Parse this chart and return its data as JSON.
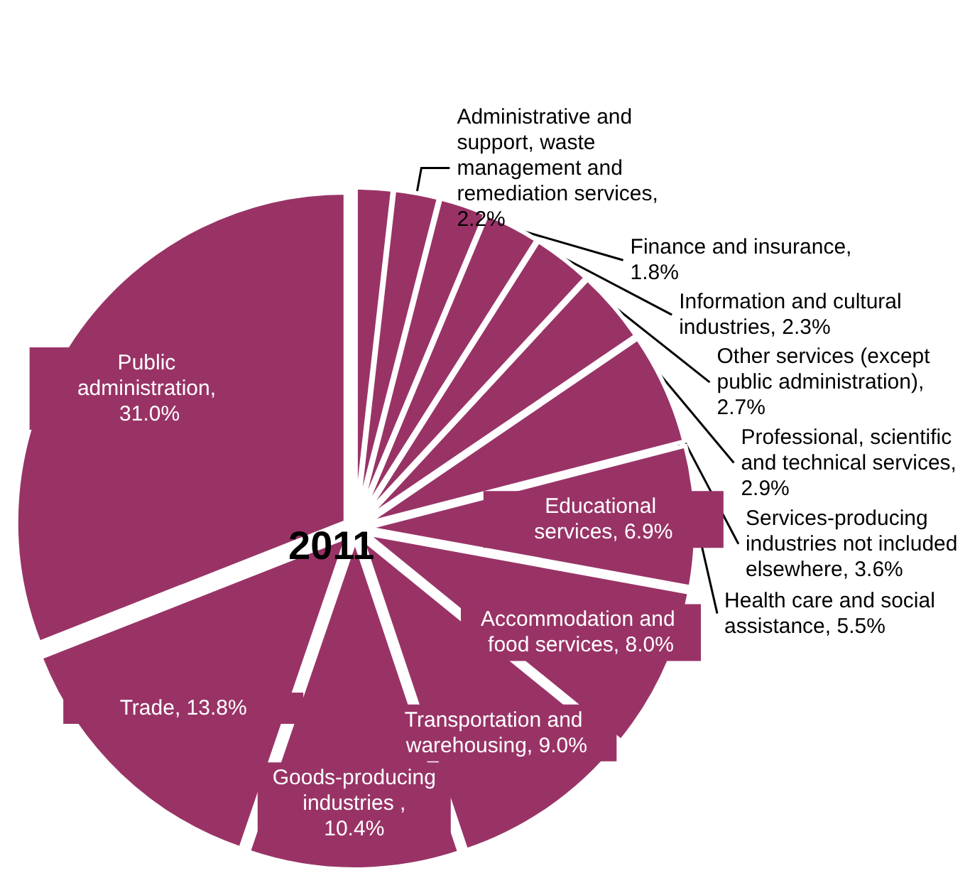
{
  "chart_data": {
    "type": "pie",
    "title": "2011",
    "legend": false,
    "categories": [
      "Finance and insurance, 1.8%",
      "Administrative and support, waste management and remediation services, 2.2%",
      "Information and cultural industries, 2.3%",
      "Other services (except public administration), 2.7%",
      "Professional, scientific and technical services, 2.9%",
      "Services-producing industries not included elsewhere, 3.6%",
      "Health care and social assistance, 5.5%",
      "Educational services, 6.9%",
      "Accommodation and food services, 8.0%",
      "Transportation and warehousing, 9.0%",
      "Goods-producing industries , 10.4%",
      "Trade, 13.8%",
      "Public administration, 31.0%"
    ],
    "values": [
      1.8,
      2.2,
      2.3,
      2.7,
      2.9,
      3.6,
      5.5,
      6.9,
      8.0,
      9.0,
      10.4,
      13.8,
      31.0
    ],
    "colors": [
      "#993366",
      "#993366",
      "#993366",
      "#993366",
      "#993366",
      "#993366",
      "#993366",
      "#993366",
      "#993366",
      "#993366",
      "#993366",
      "#993366",
      "#993366"
    ]
  }
}
